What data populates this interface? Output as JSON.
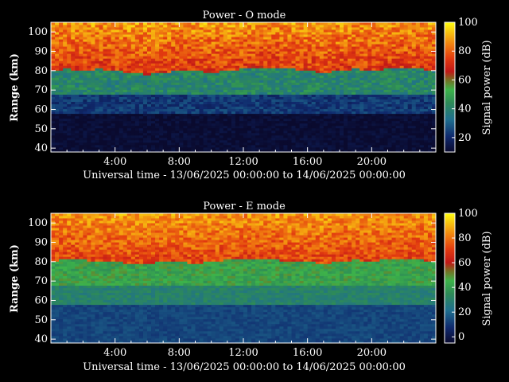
{
  "chart_data": [
    {
      "type": "heatmap",
      "title": "Power - O mode",
      "xlabel": "Universal time - 13/06/2025 00:00:00 to 14/06/2025 00:00:00",
      "ylabel": "Range (km)",
      "xlim": [
        0,
        24
      ],
      "ylim": [
        38,
        105
      ],
      "x_ticks": [
        4,
        8,
        12,
        16,
        20
      ],
      "x_tick_labels": [
        "4:00",
        "8:00",
        "12:00",
        "16:00",
        "20:00"
      ],
      "y_ticks": [
        40,
        50,
        60,
        70,
        80,
        90,
        100
      ],
      "y_tick_labels": [
        "40",
        "50",
        "60",
        "70",
        "80",
        "90",
        "100"
      ],
      "colorbar": {
        "label": "Signal power (dB)",
        "range": [
          10,
          100
        ],
        "ticks": [
          20,
          40,
          60,
          80,
          100
        ],
        "tick_labels": [
          "20",
          "40",
          "60",
          "80",
          "100"
        ]
      },
      "layers": [
        {
          "name": "noise",
          "range_km": [
            38,
            58
          ],
          "power_db": 8
        },
        {
          "name": "lower echo",
          "range_km": [
            58,
            68
          ],
          "power_db": 18
        },
        {
          "name": "transition",
          "range_km": [
            68,
            80
          ],
          "power_db": 40
        },
        {
          "name": "main echo",
          "range_km": [
            80,
            105
          ],
          "power_db": 64
        }
      ],
      "green_layer_top_km": [
        80,
        81,
        80,
        81,
        80,
        79,
        78,
        79,
        80,
        80,
        79,
        80,
        81,
        82,
        82,
        81,
        80,
        79,
        80,
        81,
        80,
        81,
        82,
        81,
        80
      ]
    },
    {
      "type": "heatmap",
      "title": "Power - E mode",
      "xlabel": "Universal time - 13/06/2025 00:00:00 to 14/06/2025 00:00:00",
      "ylabel": "Range (km)",
      "xlim": [
        0,
        24
      ],
      "ylim": [
        38,
        105
      ],
      "x_ticks": [
        4,
        8,
        12,
        16,
        20
      ],
      "x_tick_labels": [
        "4:00",
        "8:00",
        "12:00",
        "16:00",
        "20:00"
      ],
      "y_ticks": [
        40,
        50,
        60,
        70,
        80,
        90,
        100
      ],
      "y_tick_labels": [
        "40",
        "50",
        "60",
        "70",
        "80",
        "90",
        "100"
      ],
      "colorbar": {
        "label": "Signal power (dB)",
        "range": [
          -5,
          100
        ],
        "ticks": [
          0,
          20,
          40,
          60,
          80,
          100
        ],
        "tick_labels": [
          "0",
          "20",
          "40",
          "60",
          "80",
          "100"
        ]
      },
      "layers": [
        {
          "name": "noise",
          "range_km": [
            38,
            58
          ],
          "power_db": 10
        },
        {
          "name": "lower echo",
          "range_km": [
            58,
            68
          ],
          "power_db": 25
        },
        {
          "name": "transition",
          "range_km": [
            68,
            80
          ],
          "power_db": 42
        },
        {
          "name": "main echo",
          "range_km": [
            80,
            105
          ],
          "power_db": 62
        }
      ],
      "green_layer_top_km": [
        80,
        82,
        81,
        80,
        80,
        79,
        79,
        80,
        80,
        79,
        80,
        81,
        82,
        82,
        81,
        80,
        80,
        79,
        80,
        81,
        80,
        82,
        82,
        81,
        80
      ]
    }
  ]
}
